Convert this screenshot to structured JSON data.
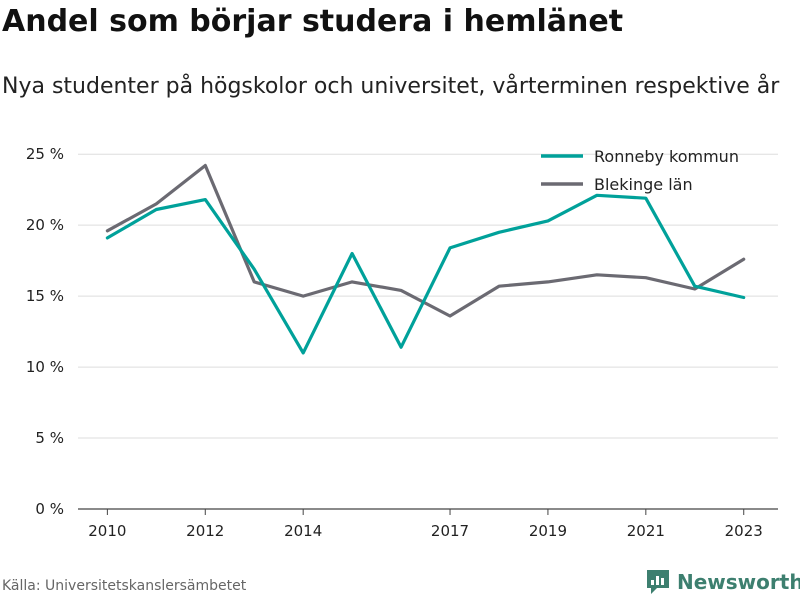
{
  "title": "Andel som börjar studera i hemlänet",
  "subtitle": "Nya studenter på högskolor och universitet, vårterminen respektive år",
  "source": "Källa: Universitetskanslersämbetet",
  "brand": "Newsworthy",
  "colors": {
    "ronneby": "#00a19a",
    "blekinge": "#6b6a72",
    "grid": "#dddddd",
    "brand": "#3d7f6f"
  },
  "chart_data": {
    "type": "line",
    "x": [
      2010,
      2011,
      2012,
      2013,
      2014,
      2015,
      2016,
      2017,
      2018,
      2019,
      2020,
      2021,
      2022,
      2023
    ],
    "x_ticks": [
      2010,
      2012,
      2014,
      2017,
      2019,
      2021,
      2023
    ],
    "y_ticks": [
      {
        "value": 0,
        "label": "0 %"
      },
      {
        "value": 5,
        "label": "5 %"
      },
      {
        "value": 10,
        "label": "10 %"
      },
      {
        "value": 15,
        "label": "15 %"
      },
      {
        "value": 20,
        "label": "20 %"
      },
      {
        "value": 25,
        "label": "25 %"
      }
    ],
    "xlim": [
      2009.4,
      2023.7
    ],
    "ylim": [
      0,
      26
    ],
    "grid": true,
    "legend_position": "top-right",
    "series": [
      {
        "name": "Ronneby kommun",
        "color_key": "ronneby",
        "values": [
          19.1,
          21.1,
          21.8,
          16.9,
          11.0,
          18.0,
          11.4,
          18.4,
          19.5,
          20.3,
          22.1,
          21.9,
          15.7,
          14.9
        ]
      },
      {
        "name": "Blekinge län",
        "color_key": "blekinge",
        "values": [
          19.6,
          21.5,
          24.2,
          16.0,
          15.0,
          16.0,
          15.4,
          13.6,
          15.7,
          16.0,
          16.5,
          16.3,
          15.5,
          17.6
        ]
      }
    ]
  }
}
